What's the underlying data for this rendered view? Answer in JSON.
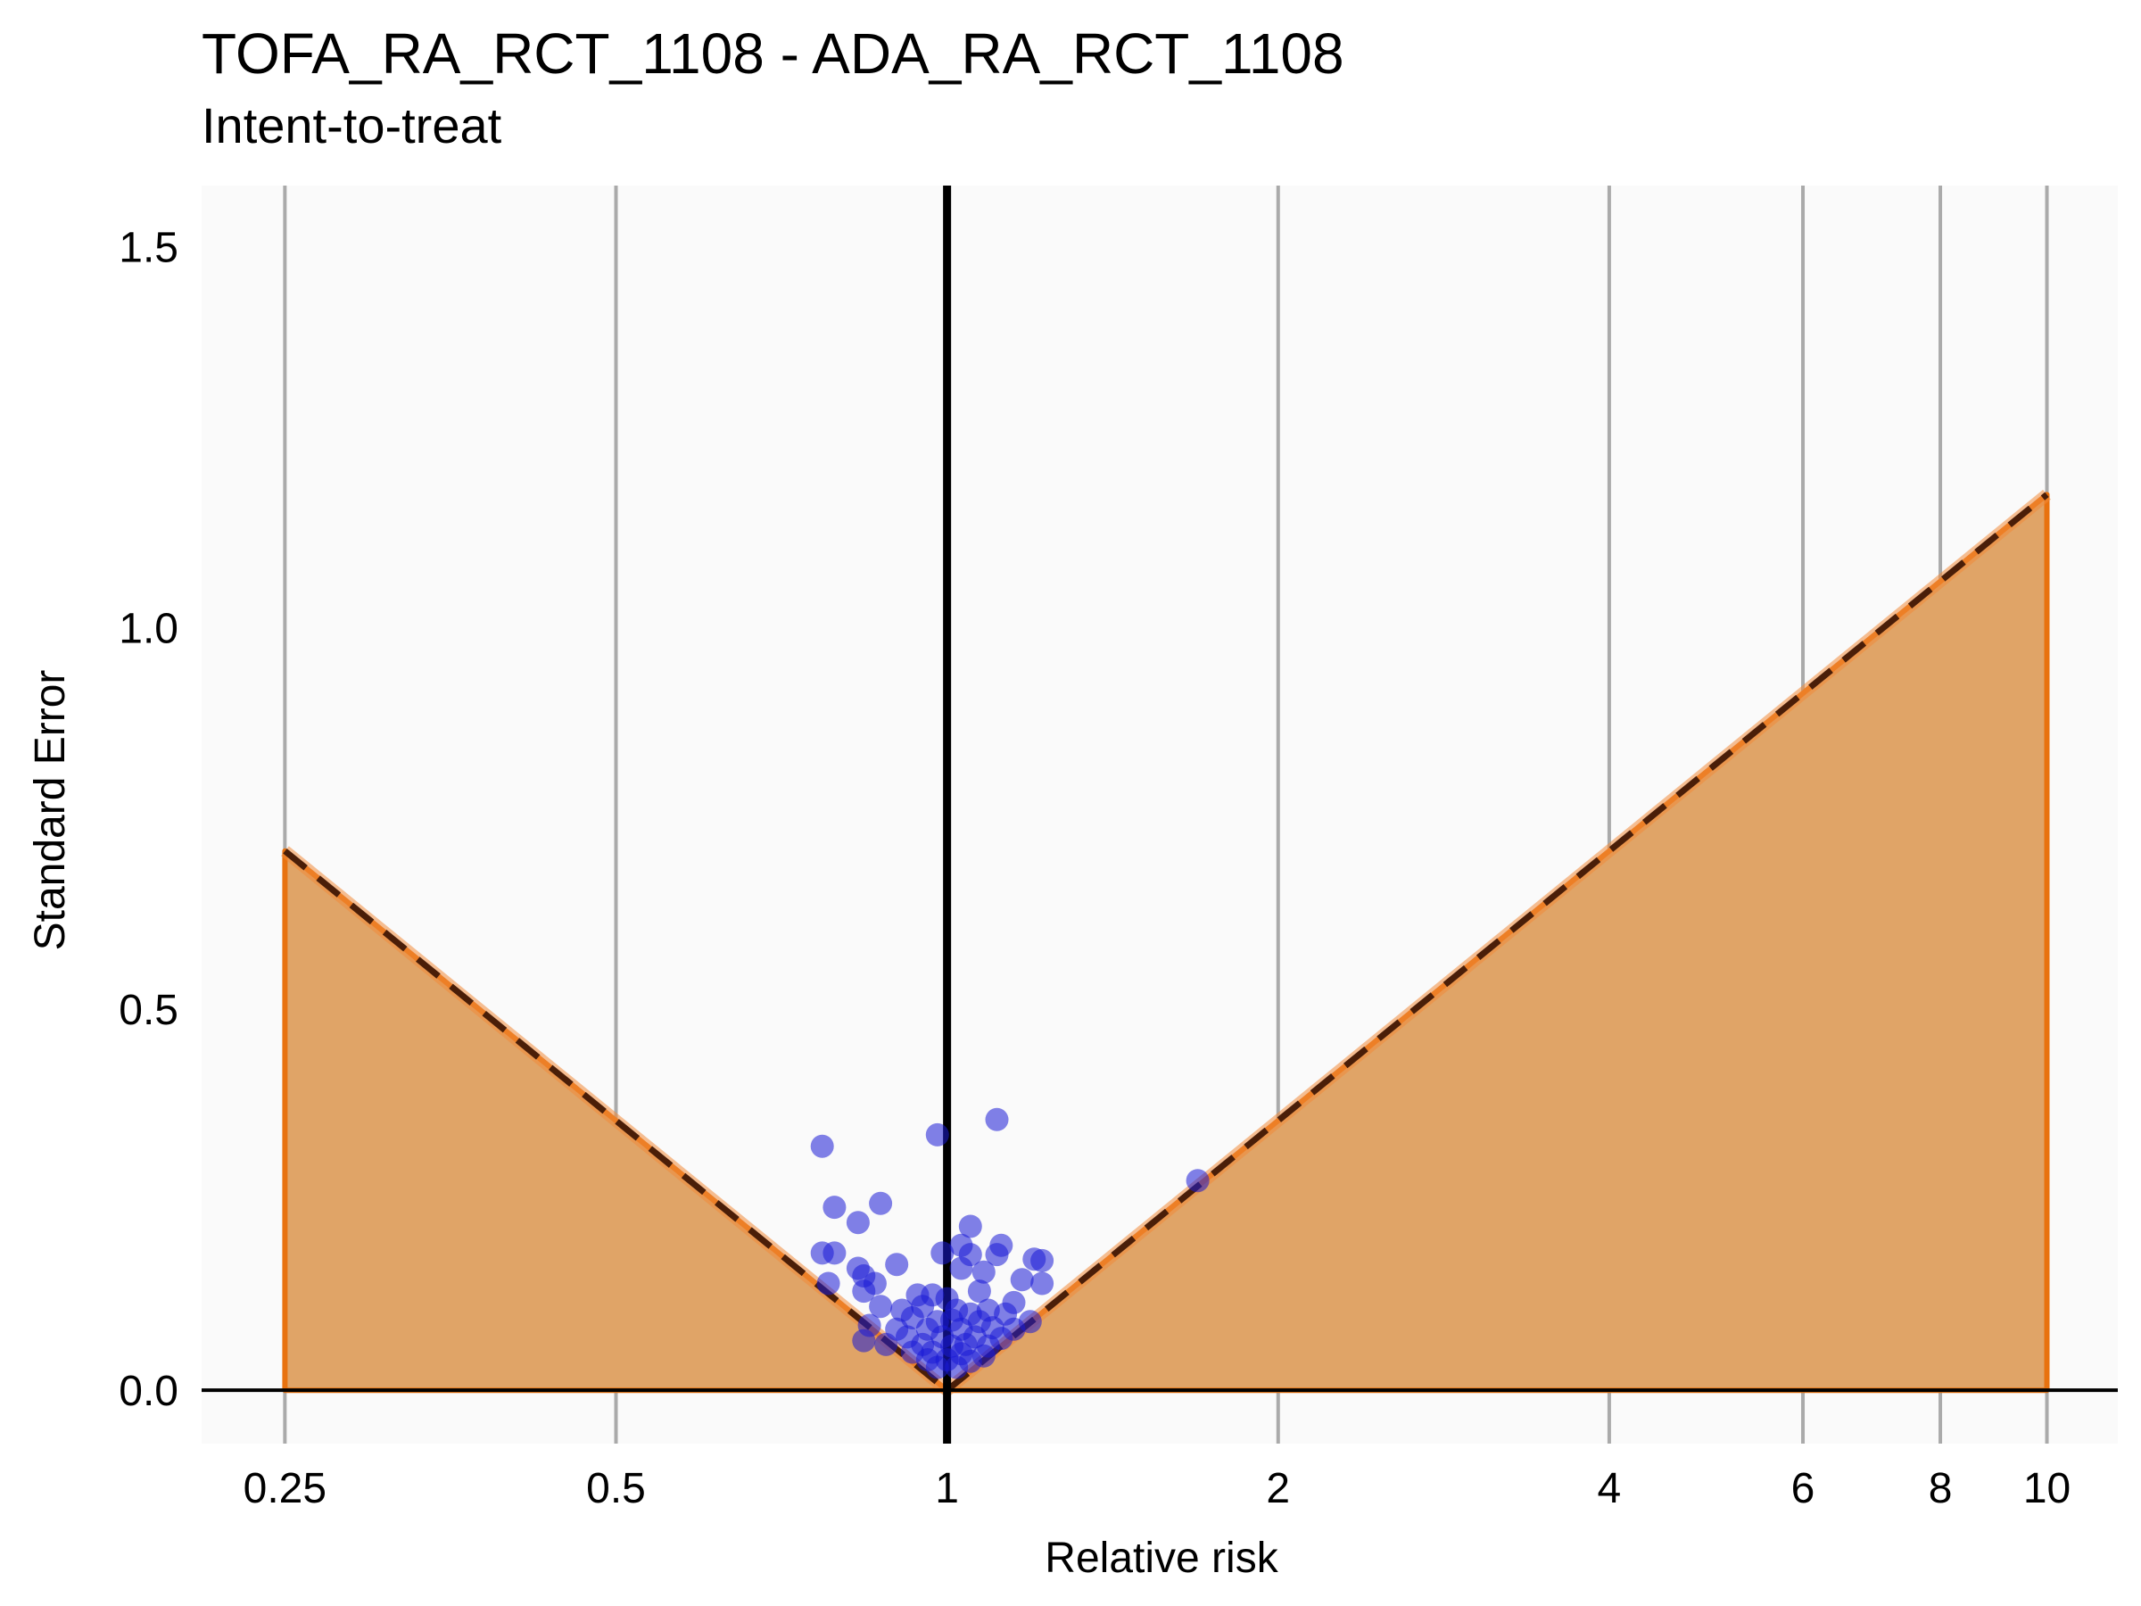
{
  "chart_data": {
    "type": "scatter",
    "title": "TOFA_RA_RCT_1108 - ADA_RA_RCT_1108",
    "subtitle": "Intent-to-treat",
    "xlabel": "Relative risk",
    "ylabel": "Standard Error",
    "x_scale": "log",
    "xlim": [
      0.21,
      11.6
    ],
    "ylim": [
      -0.07,
      1.58
    ],
    "x_ticks": [
      {
        "value": 0.25,
        "label": "0.25"
      },
      {
        "value": 0.5,
        "label": "0.5"
      },
      {
        "value": 1,
        "label": "1"
      },
      {
        "value": 2,
        "label": "2"
      },
      {
        "value": 4,
        "label": "4"
      },
      {
        "value": 6,
        "label": "6"
      },
      {
        "value": 8,
        "label": "8"
      },
      {
        "value": 10,
        "label": "10"
      }
    ],
    "y_ticks": [
      {
        "value": 0.0,
        "label": "0.0"
      },
      {
        "value": 0.5,
        "label": "0.5"
      },
      {
        "value": 1.0,
        "label": "1.0"
      },
      {
        "value": 1.5,
        "label": "1.5"
      }
    ],
    "grid": "vertical",
    "reference_line_x": 1,
    "reference_line_y": 0,
    "significance_region": {
      "x_from": 0.25,
      "x_to": 10,
      "z": 1.96
    },
    "points": [
      {
        "x": 0.77,
        "y": 0.32
      },
      {
        "x": 0.98,
        "y": 0.335
      },
      {
        "x": 1.11,
        "y": 0.355
      },
      {
        "x": 1.69,
        "y": 0.275
      },
      {
        "x": 0.87,
        "y": 0.245
      },
      {
        "x": 0.79,
        "y": 0.24
      },
      {
        "x": 0.83,
        "y": 0.22
      },
      {
        "x": 1.05,
        "y": 0.215
      },
      {
        "x": 1.12,
        "y": 0.19
      },
      {
        "x": 1.03,
        "y": 0.19
      },
      {
        "x": 0.77,
        "y": 0.18
      },
      {
        "x": 0.79,
        "y": 0.18
      },
      {
        "x": 0.99,
        "y": 0.18
      },
      {
        "x": 1.05,
        "y": 0.178
      },
      {
        "x": 1.11,
        "y": 0.178
      },
      {
        "x": 1.2,
        "y": 0.172
      },
      {
        "x": 1.22,
        "y": 0.17
      },
      {
        "x": 0.9,
        "y": 0.165
      },
      {
        "x": 0.83,
        "y": 0.16
      },
      {
        "x": 0.84,
        "y": 0.15
      },
      {
        "x": 1.03,
        "y": 0.16
      },
      {
        "x": 1.08,
        "y": 0.155
      },
      {
        "x": 0.86,
        "y": 0.14
      },
      {
        "x": 0.78,
        "y": 0.14
      },
      {
        "x": 0.84,
        "y": 0.13
      },
      {
        "x": 1.17,
        "y": 0.145
      },
      {
        "x": 1.22,
        "y": 0.14
      },
      {
        "x": 1.07,
        "y": 0.13
      },
      {
        "x": 0.94,
        "y": 0.125
      },
      {
        "x": 0.97,
        "y": 0.125
      },
      {
        "x": 1.0,
        "y": 0.12
      },
      {
        "x": 1.15,
        "y": 0.115
      },
      {
        "x": 0.87,
        "y": 0.11
      },
      {
        "x": 0.91,
        "y": 0.105
      },
      {
        "x": 0.95,
        "y": 0.11
      },
      {
        "x": 1.02,
        "y": 0.105
      },
      {
        "x": 1.05,
        "y": 0.1
      },
      {
        "x": 1.09,
        "y": 0.105
      },
      {
        "x": 1.13,
        "y": 0.1
      },
      {
        "x": 0.93,
        "y": 0.095
      },
      {
        "x": 0.98,
        "y": 0.09
      },
      {
        "x": 1.01,
        "y": 0.092
      },
      {
        "x": 1.07,
        "y": 0.09
      },
      {
        "x": 1.19,
        "y": 0.09
      },
      {
        "x": 0.85,
        "y": 0.085
      },
      {
        "x": 0.9,
        "y": 0.08
      },
      {
        "x": 0.96,
        "y": 0.08
      },
      {
        "x": 1.03,
        "y": 0.08
      },
      {
        "x": 1.1,
        "y": 0.082
      },
      {
        "x": 1.15,
        "y": 0.08
      },
      {
        "x": 0.92,
        "y": 0.07
      },
      {
        "x": 0.99,
        "y": 0.07
      },
      {
        "x": 1.06,
        "y": 0.07
      },
      {
        "x": 1.12,
        "y": 0.068
      },
      {
        "x": 0.84,
        "y": 0.065
      },
      {
        "x": 0.88,
        "y": 0.06
      },
      {
        "x": 0.95,
        "y": 0.06
      },
      {
        "x": 1.01,
        "y": 0.058
      },
      {
        "x": 1.04,
        "y": 0.06
      },
      {
        "x": 1.09,
        "y": 0.058
      },
      {
        "x": 0.93,
        "y": 0.05
      },
      {
        "x": 0.97,
        "y": 0.05
      },
      {
        "x": 1.03,
        "y": 0.048
      },
      {
        "x": 1.08,
        "y": 0.045
      },
      {
        "x": 0.96,
        "y": 0.04
      },
      {
        "x": 1.0,
        "y": 0.04
      },
      {
        "x": 1.05,
        "y": 0.038
      },
      {
        "x": 0.98,
        "y": 0.03
      },
      {
        "x": 1.02,
        "y": 0.03
      }
    ]
  }
}
